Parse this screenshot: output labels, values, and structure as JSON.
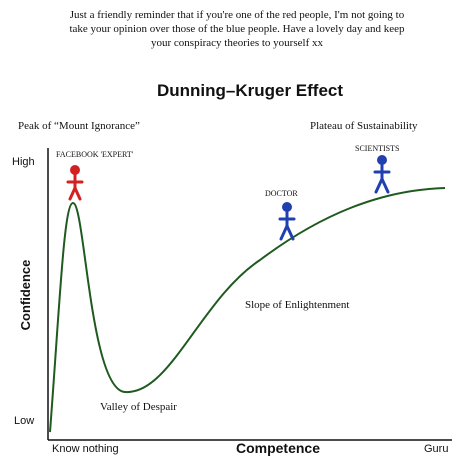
{
  "caption": [
    "Just a friendly reminder that if you're one of the red people, I'm not going to",
    "take your opinion over those of the blue people. Have a lovely day and keep",
    "your conspiracy theories to yourself xx"
  ],
  "title": "Dunning–Kruger Effect",
  "axes": {
    "y_title": "Confidence",
    "y_high": "High",
    "y_low": "Low",
    "x_title": "Competence",
    "x_left": "Know nothing",
    "x_right": "Guru"
  },
  "labels": {
    "peak": "Peak of “Mount Ignorance”",
    "plateau": "Plateau of Sustainability",
    "facebook": "FACEBOOK 'EXPERT'",
    "doctor": "DOCTOR",
    "scientists": "SCIENTISTS",
    "slope": "Slope of Enlightenment",
    "valley": "Valley of Despair"
  }
}
